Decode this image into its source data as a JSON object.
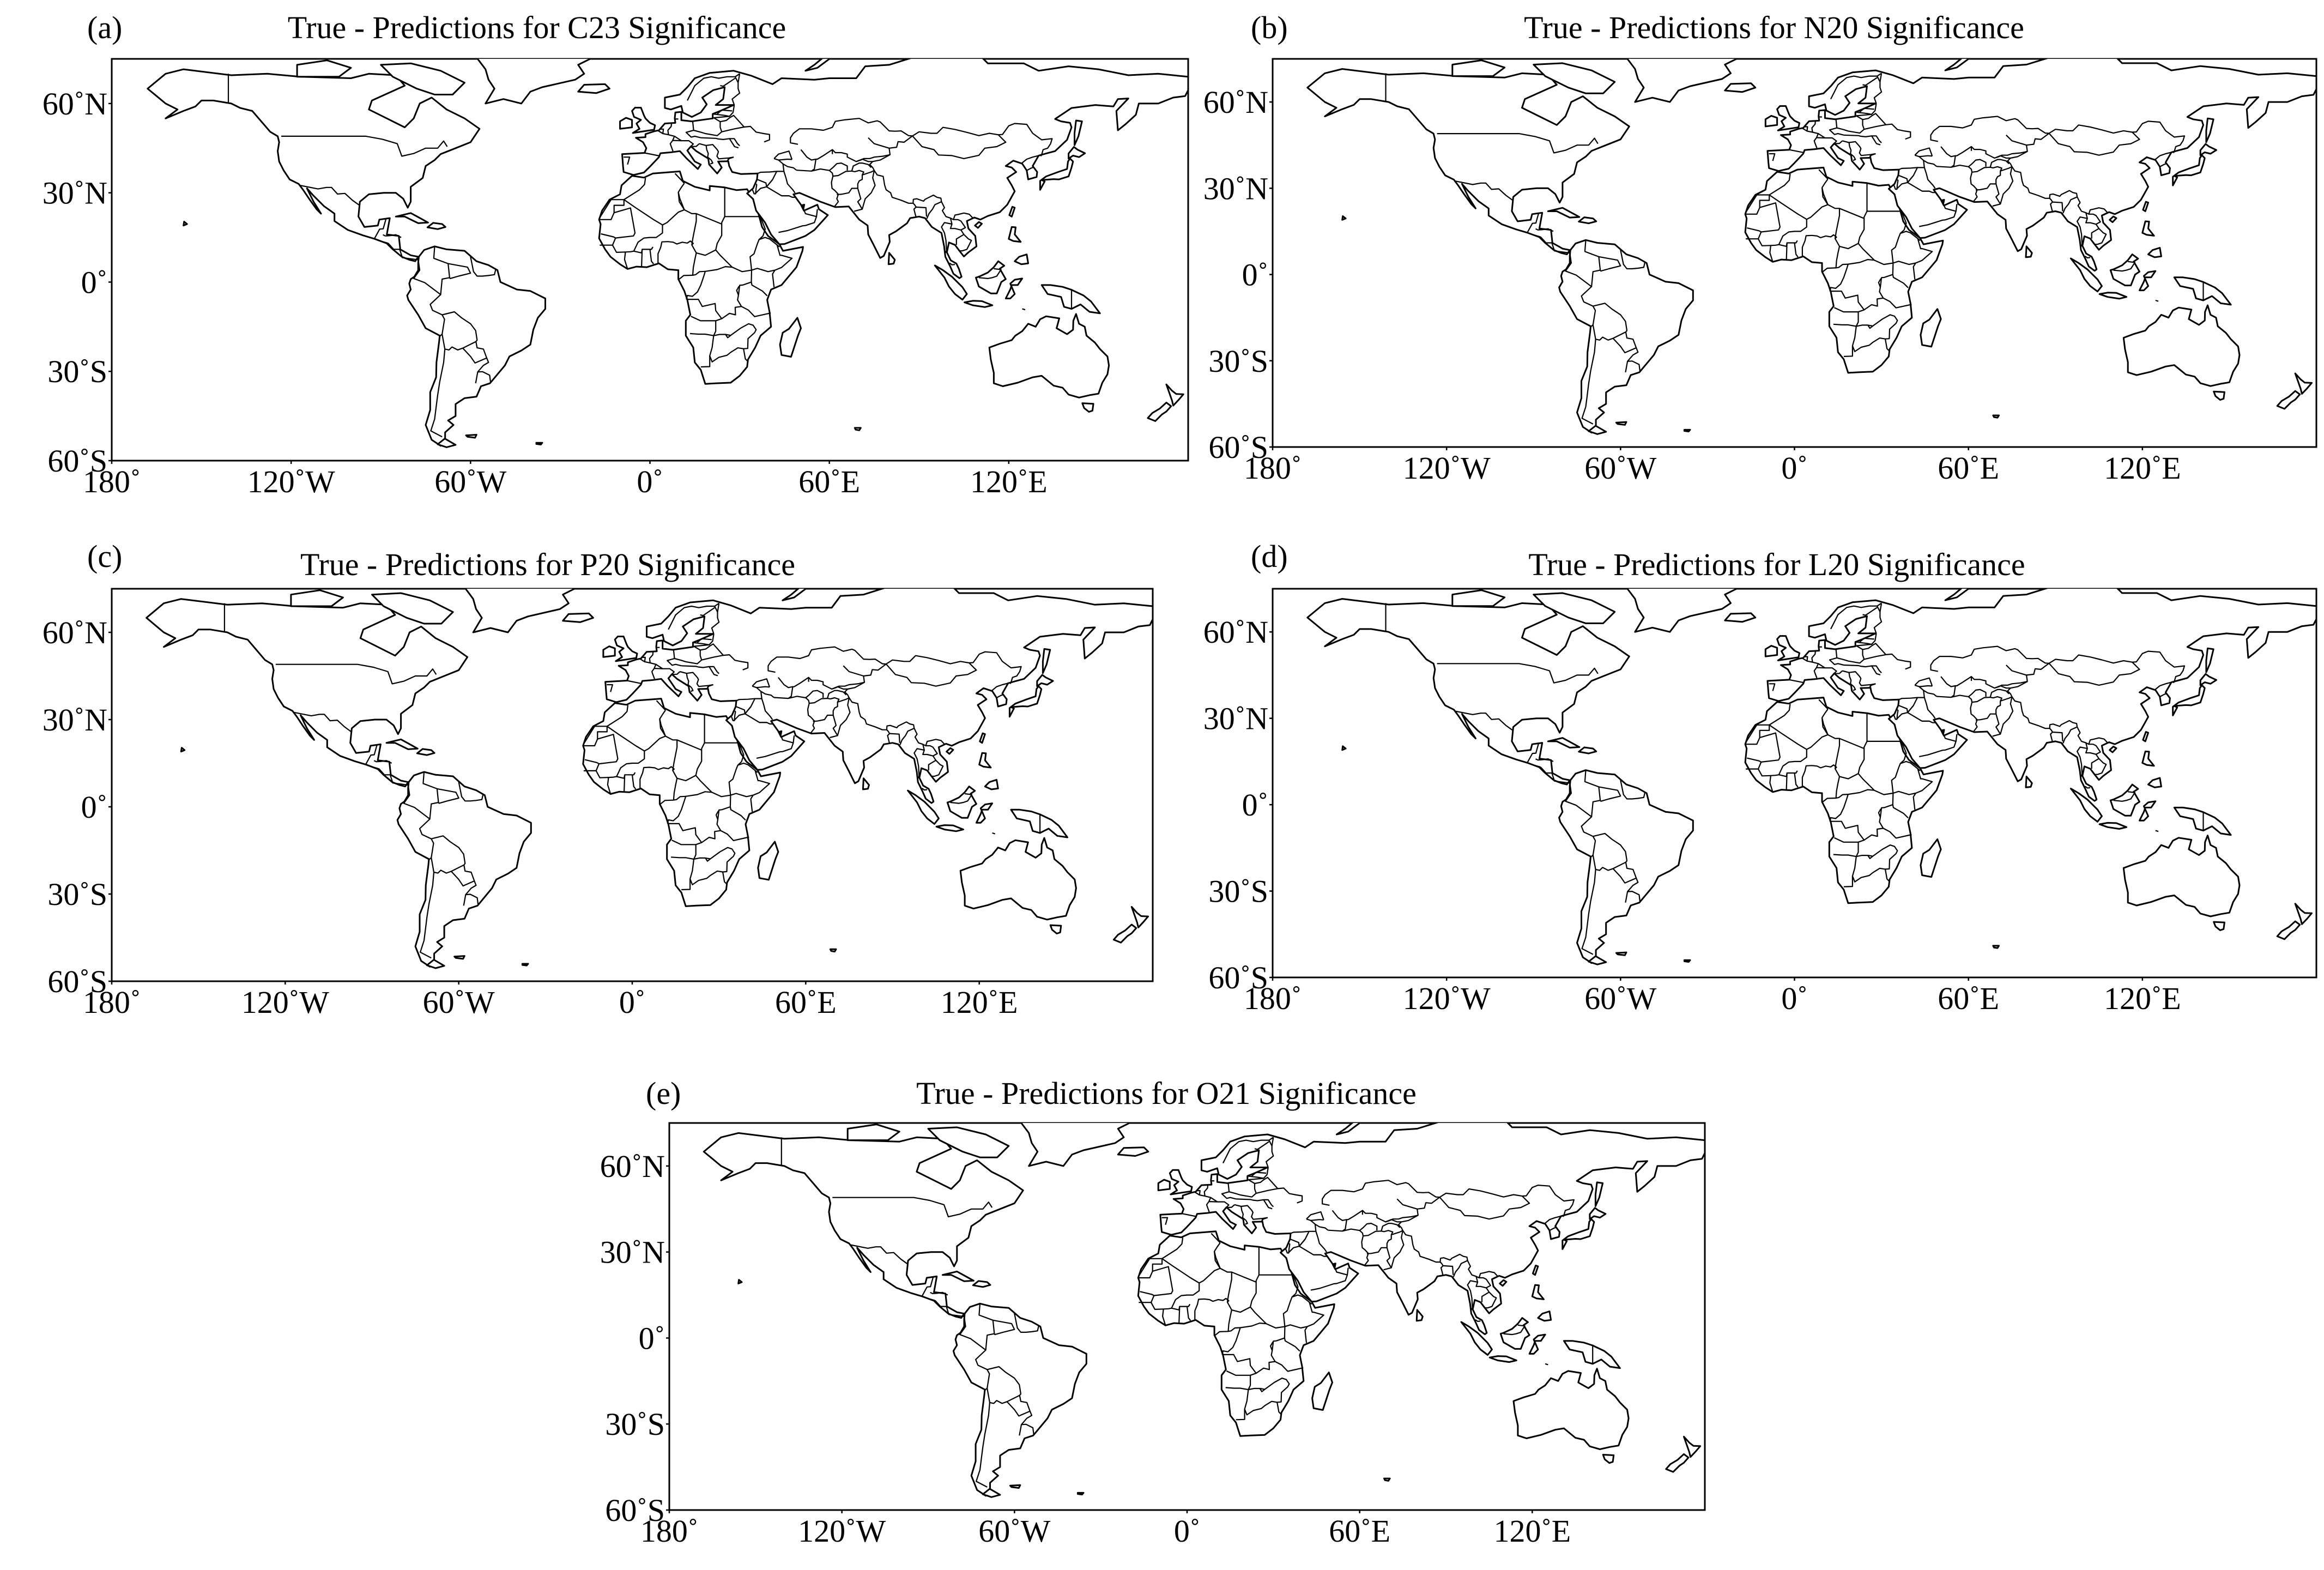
{
  "colors": {
    "background": "#ffffff",
    "outline": "#000000"
  },
  "panels": [
    {
      "label": "(a)",
      "title": "True - Predictions for C23 Significance"
    },
    {
      "label": "(b)",
      "title": "True - Predictions for N20 Significance"
    },
    {
      "label": "(c)",
      "title": "True - Predictions for P20 Significance"
    },
    {
      "label": "(d)",
      "title": "True - Predictions for L20 Significance"
    },
    {
      "label": "(e)",
      "title": "True - Predictions for O21 Significance"
    }
  ],
  "map": {
    "projection": "plate-carree",
    "lon_range": [
      -180,
      180
    ],
    "lat_range": [
      -60,
      75
    ],
    "x_ticks": [
      {
        "value": -180,
        "label": "180˚"
      },
      {
        "value": -120,
        "label": "120˚W"
      },
      {
        "value": -60,
        "label": "60˚W"
      },
      {
        "value": 0,
        "label": "0˚"
      },
      {
        "value": 60,
        "label": "60˚E"
      },
      {
        "value": 120,
        "label": "120˚E"
      }
    ],
    "y_ticks": [
      {
        "value": 60,
        "label": "60˚N"
      },
      {
        "value": 30,
        "label": "30˚N"
      },
      {
        "value": 0,
        "label": "0˚"
      },
      {
        "value": -30,
        "label": "30˚S"
      },
      {
        "value": -60,
        "label": "60˚S"
      }
    ],
    "data_overlay": "none visible"
  }
}
